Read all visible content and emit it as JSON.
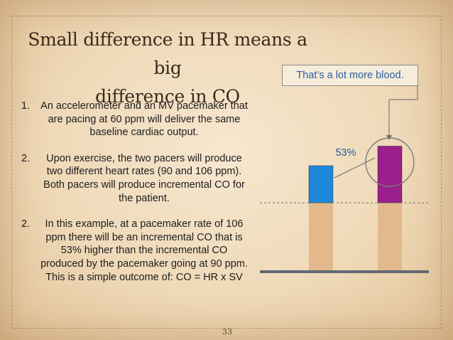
{
  "slide": {
    "title_line1": "Small difference in HR means a big",
    "title_line2": "difference in CO",
    "items": [
      {
        "num": "1.",
        "text": "An accelerometer and an MV pacemaker that are pacing at 60 ppm will deliver the same baseline cardiac output."
      },
      {
        "num": "2.",
        "text": "Upon exercise, the two pacers will produce two different heart rates (90 and 106 ppm).  Both pacers will produce incremental CO for the patient."
      },
      {
        "num": "2.",
        "text": "In this example, at a pacemaker rate of 106 ppm there will be an incremental CO that is 53% higher than the incremental CO produced by the pacemaker going at 90 ppm.  This is a simple outcome of:  CO = HR x SV"
      }
    ],
    "callout": "That’s a lot more blood.",
    "page_number": "33"
  },
  "chart_data": {
    "type": "bar",
    "stacked": true,
    "categories": [
      "",
      ""
    ],
    "series": [
      {
        "values": [
          1,
          1
        ],
        "color": "#e2b98a"
      },
      {
        "values": [
          0.55,
          0.84
        ],
        "color": "#1e88d8"
      }
    ],
    "top_colors": [
      "#1e88d8",
      "#9a1f8c"
    ],
    "baseline_color": "#e2b98a",
    "annotation": "53%",
    "ylim": [
      0,
      1.95
    ]
  }
}
